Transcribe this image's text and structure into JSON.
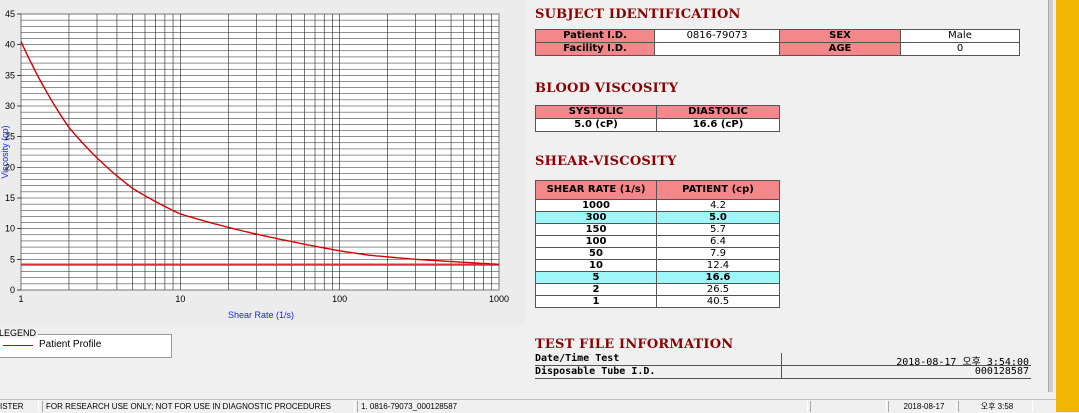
{
  "chart_data": {
    "type": "line",
    "x_scale": "log",
    "xlim": [
      1,
      1000
    ],
    "ylim": [
      0,
      45
    ],
    "xticks": [
      "1",
      "10",
      "100",
      "1000"
    ],
    "yticks": [
      "0",
      "5",
      "10",
      "15",
      "20",
      "25",
      "30",
      "35",
      "40",
      "45"
    ],
    "xlabel": "Shear Rate (1/s)",
    "ylabel": "Viscosity (cp)",
    "grid": true,
    "series": [
      {
        "name": "Patient Profile",
        "color": "#d40000",
        "x": [
          1,
          2,
          5,
          10,
          50,
          100,
          150,
          300,
          1000
        ],
        "y": [
          40.5,
          26.5,
          16.6,
          12.4,
          7.9,
          6.4,
          5.7,
          5.0,
          4.2
        ]
      }
    ],
    "reference_line": {
      "y": 4.2,
      "color": "#e03030"
    },
    "legend_title": "LEGEND",
    "legend_position": "bottom-left"
  },
  "subject": {
    "title": "SUBJECT IDENTIFICATION",
    "patient_id_label": "Patient I.D.",
    "patient_id": "0816-79073",
    "facility_id_label": "Facility I.D.",
    "facility_id": "",
    "sex_label": "SEX",
    "sex": "Male",
    "age_label": "AGE",
    "age": "0"
  },
  "blood": {
    "title": "BLOOD VISCOSITY",
    "systolic_label": "SYSTOLIC",
    "diastolic_label": "DIASTOLIC",
    "systolic": "5.0 (cP)",
    "diastolic": "16.6 (cP)"
  },
  "shear": {
    "title": "SHEAR-VISCOSITY",
    "col_rate": "SHEAR RATE (1/s)",
    "col_patient": "PATIENT (cp)",
    "rows": [
      {
        "rate": "1000",
        "value": "4.2"
      },
      {
        "rate": "300",
        "value": "5.0"
      },
      {
        "rate": "150",
        "value": "5.7"
      },
      {
        "rate": "100",
        "value": "6.4"
      },
      {
        "rate": "50",
        "value": "7.9"
      },
      {
        "rate": "10",
        "value": "12.4"
      },
      {
        "rate": "5",
        "value": "16.6"
      },
      {
        "rate": "2",
        "value": "26.5"
      },
      {
        "rate": "1",
        "value": "40.5"
      }
    ]
  },
  "testinfo": {
    "title": "TEST FILE INFORMATION",
    "datetime_label": "Date/Time Test",
    "datetime": "2018-08-17  오후 3:54:00",
    "tube_label": "Disposable Tube I.D.",
    "tube": "000128587"
  },
  "statusbar": {
    "mode": "ISTER",
    "notice": "FOR RESEARCH USE ONLY; NOT FOR USE IN DIAGNOSTIC PROCEDURES",
    "file": "1. 0816-79073_000128587",
    "empty": "",
    "date": "2018-08-17",
    "time": "오후 3:58"
  }
}
